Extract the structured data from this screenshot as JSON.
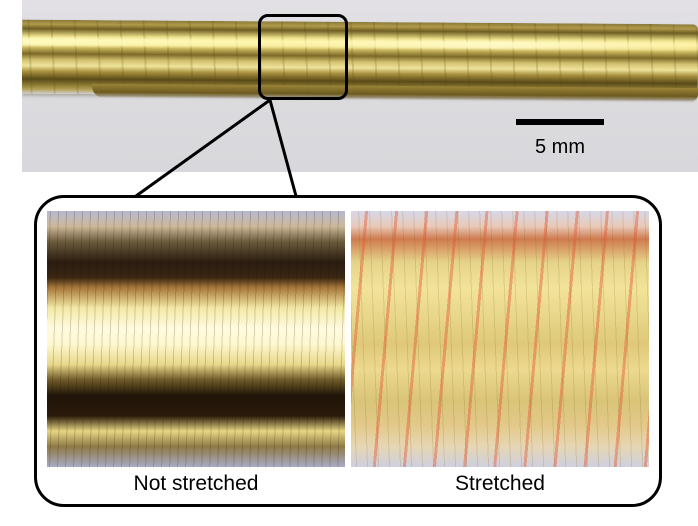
{
  "figure": {
    "scale_bar_label": "5 mm",
    "captions": {
      "left": "Not stretched",
      "right": "Stretched"
    }
  }
}
